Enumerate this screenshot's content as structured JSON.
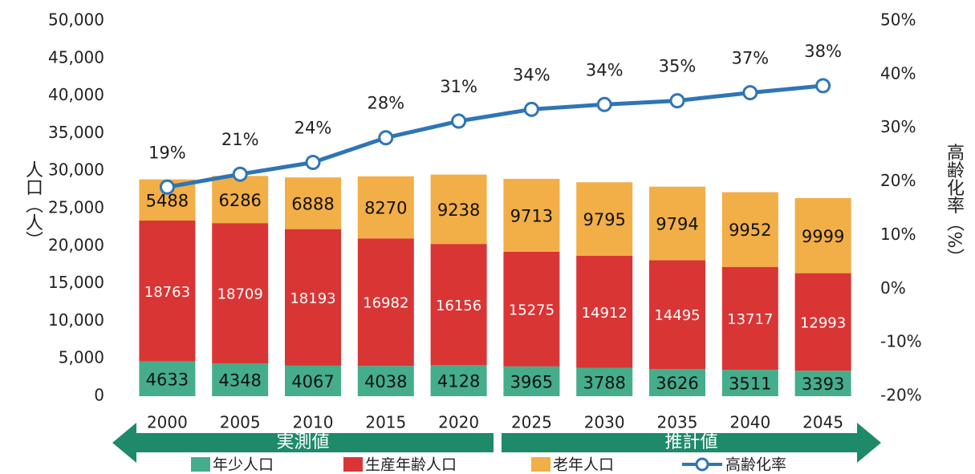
{
  "chart_data": {
    "type": "stacked_bar_line",
    "categories": [
      "2000",
      "2005",
      "2010",
      "2015",
      "2020",
      "2025",
      "2030",
      "2035",
      "2040",
      "2045"
    ],
    "series": [
      {
        "name": "年少人口",
        "color": "#45ad8b",
        "label_color": "#111111",
        "values": [
          4633,
          4348,
          4067,
          4038,
          4128,
          3965,
          3788,
          3626,
          3511,
          3393
        ]
      },
      {
        "name": "生産年齢人口",
        "color": "#d93535",
        "label_color": "#ffffff",
        "values": [
          18763,
          18709,
          18193,
          16982,
          16156,
          15275,
          14912,
          14495,
          13717,
          12993
        ]
      },
      {
        "name": "老年人口",
        "color": "#f2ae47",
        "label_color": "#111111",
        "values": [
          5488,
          6286,
          6888,
          8270,
          9238,
          9713,
          9795,
          9794,
          9952,
          9999
        ]
      },
      {
        "name": "高齢化率",
        "type": "line",
        "axis": "y2",
        "color": "#2e75b6",
        "values": [
          19.0,
          21.4,
          23.6,
          28.2,
          31.3,
          33.5,
          34.4,
          35.1,
          36.6,
          37.9
        ],
        "value_labels": [
          "19%",
          "21%",
          "24%",
          "28%",
          "31%",
          "34%",
          "34%",
          "35%",
          "37%",
          "38%"
        ]
      }
    ],
    "ylabel": "人口（人）",
    "y2label": "高齢化率（%）",
    "ylim": [
      0,
      50000
    ],
    "yticks": [
      0,
      {
        "value": 5000,
        "label": "5,000"
      },
      {
        "value": 10000,
        "label": "10,000"
      },
      {
        "value": 15000,
        "label": "15,000"
      },
      {
        "value": 20000,
        "label": "20,000"
      },
      {
        "value": 25000,
        "label": "25,000"
      },
      {
        "value": 30000,
        "label": "30,000"
      },
      {
        "value": 35000,
        "label": "35,000"
      },
      {
        "value": 40000,
        "label": "40,000"
      },
      {
        "value": 45000,
        "label": "45,000"
      },
      {
        "value": 50000,
        "label": "50,000"
      }
    ],
    "y2lim": [
      -20,
      50
    ],
    "y2ticks": [
      {
        "value": -20,
        "label": "-20%"
      },
      {
        "value": -10,
        "label": "-10%"
      },
      {
        "value": 0,
        "label": "0%"
      },
      {
        "value": 10,
        "label": "10%"
      },
      {
        "value": 20,
        "label": "20%"
      },
      {
        "value": 30,
        "label": "30%"
      },
      {
        "value": 40,
        "label": "40%"
      },
      {
        "value": 50,
        "label": "50%"
      }
    ],
    "annotations": [
      {
        "text": "実測値",
        "direction": "left",
        "color": "#1e8a6a"
      },
      {
        "text": "推計値",
        "direction": "right",
        "color": "#1e8a6a"
      }
    ],
    "legend": "bottom"
  }
}
